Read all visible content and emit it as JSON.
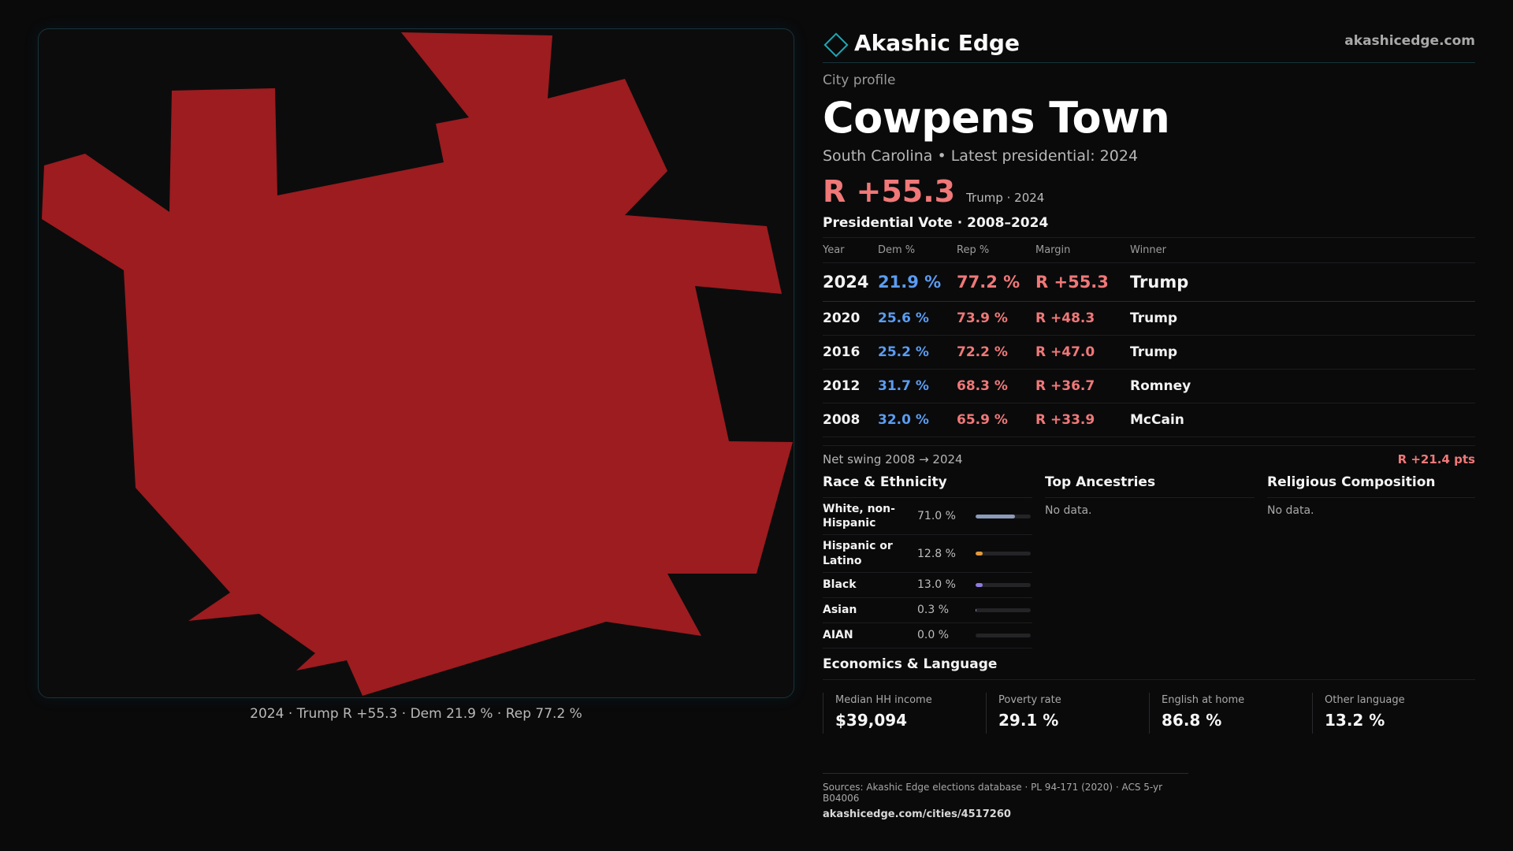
{
  "map": {
    "fill": "#9c1c1f",
    "caption": "2024 · Trump R +55.3 · Dem 21.9 % · Rep 77.2 %"
  },
  "header": {
    "brand": "Akashic Edge",
    "site": "akashicedge.com",
    "accent": "#1fa7b3"
  },
  "profile": {
    "eyebrow": "City profile",
    "city": "Cowpens Town",
    "subtitle": "South Carolina • Latest presidential: 2024",
    "margin": "R +55.3",
    "margin_note": "Trump · 2024"
  },
  "presidential": {
    "title": "Presidential Vote · 2008–2024",
    "columns": [
      "Year",
      "Dem %",
      "Rep %",
      "Margin",
      "Winner"
    ],
    "rows": [
      {
        "year": "2024",
        "dem": "21.9 %",
        "rep": "77.2 %",
        "margin": "R +55.3",
        "winner": "Trump"
      },
      {
        "year": "2020",
        "dem": "25.6 %",
        "rep": "73.9 %",
        "margin": "R +48.3",
        "winner": "Trump"
      },
      {
        "year": "2016",
        "dem": "25.2 %",
        "rep": "72.2 %",
        "margin": "R +47.0",
        "winner": "Trump"
      },
      {
        "year": "2012",
        "dem": "31.7 %",
        "rep": "68.3 %",
        "margin": "R +36.7",
        "winner": "Romney"
      },
      {
        "year": "2008",
        "dem": "32.0 %",
        "rep": "65.9 %",
        "margin": "R +33.9",
        "winner": "McCain"
      }
    ],
    "swing_label": "Net swing 2008 → 2024",
    "swing_value": "R +21.4 pts",
    "dem_color": "#5b9cf0",
    "rep_color": "#f07878"
  },
  "race": {
    "title": "Race & Ethnicity",
    "items": [
      {
        "name": "White, non-Hispanic",
        "pct": "71.0 %",
        "value": 71.0,
        "color": "#8c9bb8"
      },
      {
        "name": "Hispanic or Latino",
        "pct": "12.8 %",
        "value": 12.8,
        "color": "#e39a3b"
      },
      {
        "name": "Black",
        "pct": "13.0 %",
        "value": 13.0,
        "color": "#8f7ae0"
      },
      {
        "name": "Asian",
        "pct": "0.3 %",
        "value": 0.3,
        "color": "#8c9bb8"
      },
      {
        "name": "AIAN",
        "pct": "0.0 %",
        "value": 0.0,
        "color": "#8c9bb8"
      }
    ]
  },
  "ancestries": {
    "title": "Top Ancestries",
    "empty": "No data."
  },
  "religion": {
    "title": "Religious Composition",
    "empty": "No data."
  },
  "economics": {
    "title": "Economics & Language",
    "items": [
      {
        "label": "Median HH income",
        "value": "$39,094"
      },
      {
        "label": "Poverty rate",
        "value": "29.1 %"
      },
      {
        "label": "English at home",
        "value": "86.8 %"
      },
      {
        "label": "Other language",
        "value": "13.2 %"
      }
    ]
  },
  "sources": {
    "text": "Sources: Akashic Edge elections database · PL 94-171 (2020) · ACS 5-yr B04006",
    "url": "akashicedge.com/cities/4517260"
  }
}
